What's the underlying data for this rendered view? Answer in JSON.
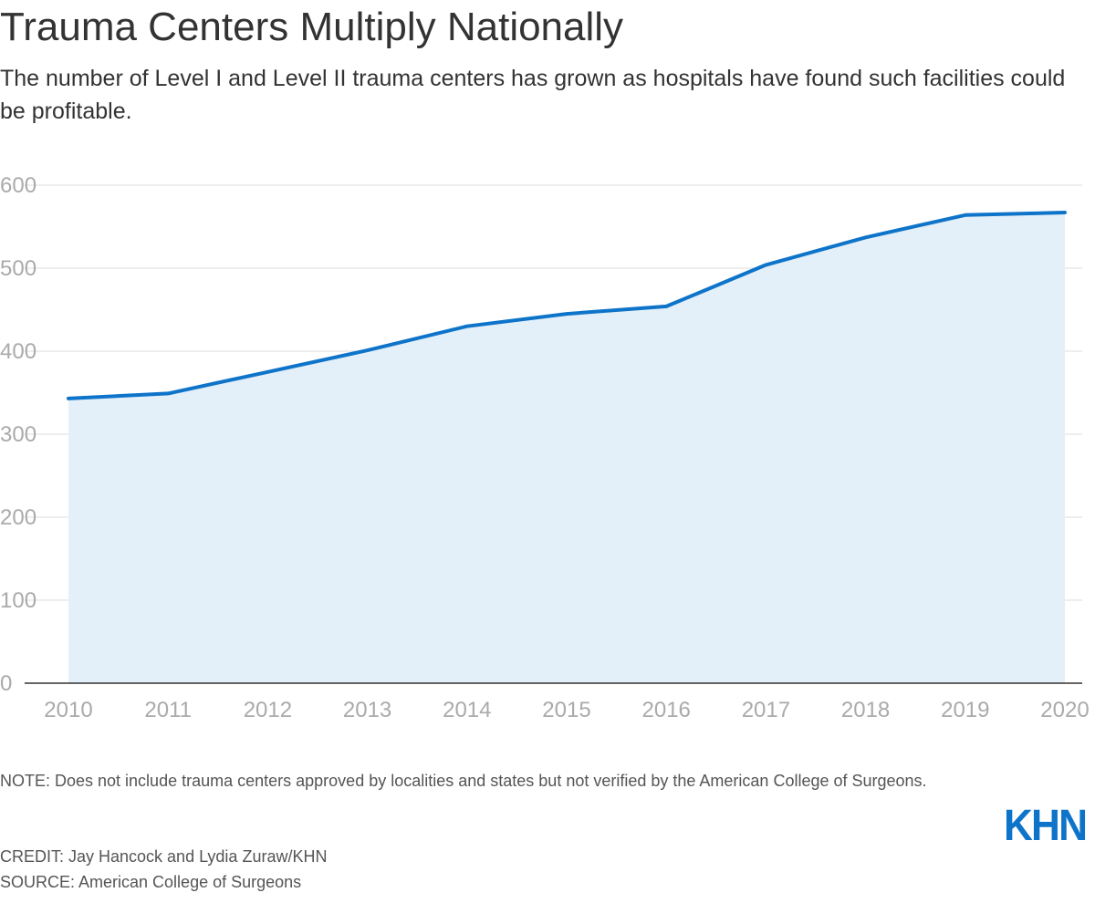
{
  "title": "Trauma Centers Multiply Nationally",
  "subtitle": "The number of Level I and Level II trauma centers has grown as hospitals have found such facilities could be profitable.",
  "note": "NOTE: Does not include trauma centers approved by localities and states but not verified by the American College of Surgeons.",
  "credit": "CREDIT: Jay Hancock and Lydia Zuraw/KHN",
  "source": "SOURCE: American College of Surgeons",
  "logo_text": "KHN",
  "colors": {
    "line": "#0e74c9",
    "area": "#e3eff9",
    "grid": "#dddddd",
    "axis": "#333333",
    "tick": "#aaaaaa"
  },
  "chart_data": {
    "type": "area",
    "title": "Trauma Centers Multiply Nationally",
    "xlabel": "",
    "ylabel": "",
    "x": [
      "2010",
      "2011",
      "2012",
      "2013",
      "2014",
      "2015",
      "2016",
      "2017",
      "2018",
      "2019",
      "2020"
    ],
    "series": [
      {
        "name": "Level I and Level II trauma centers",
        "values": [
          343,
          349,
          375,
          401,
          430,
          445,
          454,
          504,
          537,
          564,
          567
        ]
      }
    ],
    "ylim": [
      0,
      600
    ],
    "yticks": [
      "0",
      "100",
      "200",
      "300",
      "400",
      "500",
      "600"
    ],
    "grid": true,
    "legend": "none"
  }
}
